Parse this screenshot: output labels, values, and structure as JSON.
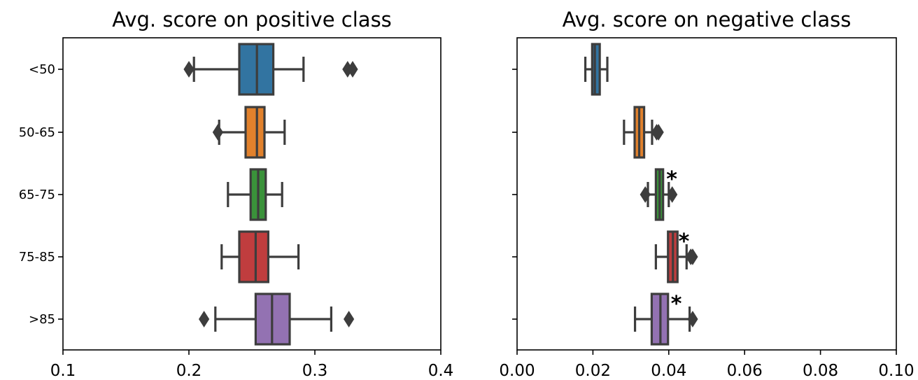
{
  "chart_data": [
    {
      "type": "box",
      "title": "Avg. score on positive class",
      "categories": [
        "<50",
        "50-65",
        "65-75",
        "75-85",
        ">85"
      ],
      "colors": [
        "#3274a1",
        "#e1812c",
        "#3a923a",
        "#c03d3e",
        "#9372b2"
      ],
      "xlim": [
        0.1,
        0.4
      ],
      "xticks": [
        0.1,
        0.2,
        0.3,
        0.4
      ],
      "xtick_labels": [
        "0.1",
        "0.2",
        "0.3",
        "0.4"
      ],
      "boxes": [
        {
          "whislo": 0.204,
          "q1": 0.24,
          "med": 0.254,
          "q3": 0.267,
          "whishi": 0.291,
          "fliers": [
            0.2,
            0.326,
            0.33
          ]
        },
        {
          "whislo": 0.224,
          "q1": 0.245,
          "med": 0.254,
          "q3": 0.26,
          "whishi": 0.276,
          "fliers": [
            0.223
          ]
        },
        {
          "whislo": 0.231,
          "q1": 0.249,
          "med": 0.255,
          "q3": 0.261,
          "whishi": 0.274,
          "fliers": []
        },
        {
          "whislo": 0.226,
          "q1": 0.24,
          "med": 0.253,
          "q3": 0.263,
          "whishi": 0.287,
          "fliers": []
        },
        {
          "whislo": 0.221,
          "q1": 0.253,
          "med": 0.266,
          "q3": 0.28,
          "whishi": 0.313,
          "fliers": [
            0.212,
            0.327
          ]
        }
      ],
      "annotations": []
    },
    {
      "type": "box",
      "title": "Avg. score on negative class",
      "categories": [
        "<50",
        "50-65",
        "65-75",
        "75-85",
        ">85"
      ],
      "colors": [
        "#3274a1",
        "#e1812c",
        "#3a923a",
        "#c03d3e",
        "#9372b2"
      ],
      "xlim": [
        0.0,
        0.1
      ],
      "xticks": [
        0.0,
        0.02,
        0.04,
        0.06,
        0.08,
        0.1
      ],
      "xtick_labels": [
        "0.00",
        "0.02",
        "0.04",
        "0.06",
        "0.08",
        "0.10"
      ],
      "boxes": [
        {
          "whislo": 0.018,
          "q1": 0.0198,
          "med": 0.0205,
          "q3": 0.0218,
          "whishi": 0.0238,
          "fliers": []
        },
        {
          "whislo": 0.0282,
          "q1": 0.031,
          "med": 0.0322,
          "q3": 0.0335,
          "whishi": 0.0356,
          "fliers": [
            0.0368,
            0.0373
          ]
        },
        {
          "whislo": 0.0345,
          "q1": 0.0366,
          "med": 0.0376,
          "q3": 0.0385,
          "whishi": 0.04,
          "fliers": [
            0.0338,
            0.0409
          ]
        },
        {
          "whislo": 0.0366,
          "q1": 0.0398,
          "med": 0.0411,
          "q3": 0.0423,
          "whishi": 0.0447,
          "fliers": [
            0.0458,
            0.0463
          ]
        },
        {
          "whislo": 0.0311,
          "q1": 0.0355,
          "med": 0.0378,
          "q3": 0.0398,
          "whishi": 0.0455,
          "fliers": [
            0.0463
          ]
        }
      ],
      "annotations": [
        {
          "category": "65-75",
          "x": 0.0408,
          "text": "*"
        },
        {
          "category": "75-85",
          "x": 0.044,
          "text": "*"
        },
        {
          "category": ">85",
          "x": 0.042,
          "text": "*"
        }
      ]
    }
  ]
}
